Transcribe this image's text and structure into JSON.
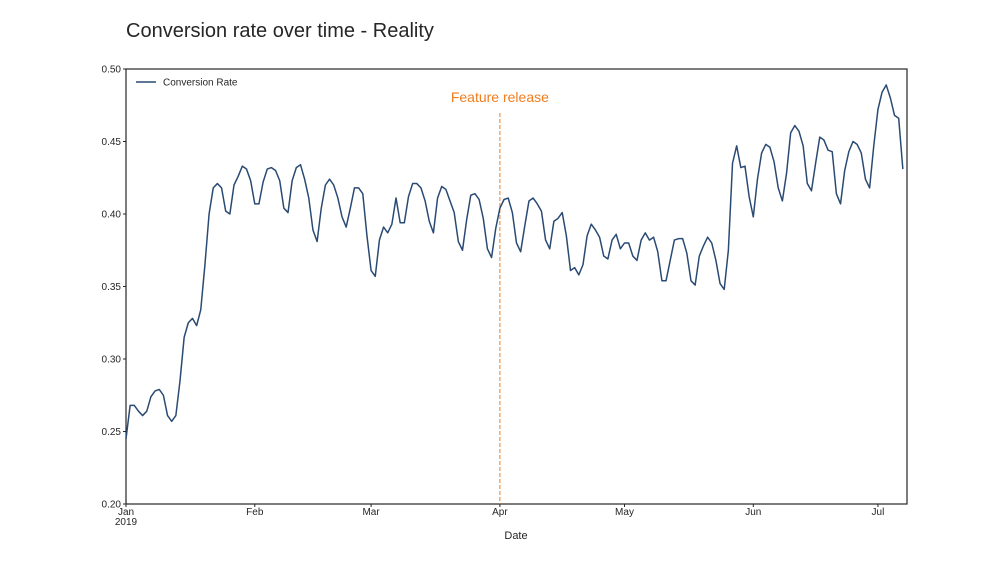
{
  "chart_data": {
    "type": "line",
    "title": "Conversion rate over time - Reality",
    "xlabel": "Date",
    "ylabel": "",
    "xlim": [
      "2019-01-01",
      "2019-07-08"
    ],
    "ylim": [
      0.2,
      0.5
    ],
    "yticks": [
      0.2,
      0.25,
      0.3,
      0.35,
      0.4,
      0.45,
      0.5
    ],
    "ytick_labels": [
      "0.20",
      "0.25",
      "0.30",
      "0.35",
      "0.40",
      "0.45",
      "0.50"
    ],
    "xticks": [
      {
        "date": "2019-01-01",
        "label": "Jan",
        "sublabel": "2019"
      },
      {
        "date": "2019-02-01",
        "label": "Feb",
        "sublabel": ""
      },
      {
        "date": "2019-03-01",
        "label": "Mar",
        "sublabel": ""
      },
      {
        "date": "2019-04-01",
        "label": "Apr",
        "sublabel": ""
      },
      {
        "date": "2019-05-01",
        "label": "May",
        "sublabel": ""
      },
      {
        "date": "2019-06-01",
        "label": "Jun",
        "sublabel": ""
      },
      {
        "date": "2019-07-01",
        "label": "Jul",
        "sublabel": ""
      }
    ],
    "grid": false,
    "legend": {
      "placement": "top-left"
    },
    "series": [
      {
        "name": "Conversion Rate",
        "color": "#2a4a73",
        "points": [
          [
            "2019-01-01",
            0.245
          ],
          [
            "2019-01-02",
            0.268
          ],
          [
            "2019-01-03",
            0.268
          ],
          [
            "2019-01-04",
            0.264
          ],
          [
            "2019-01-05",
            0.261
          ],
          [
            "2019-01-06",
            0.264
          ],
          [
            "2019-01-07",
            0.274
          ],
          [
            "2019-01-08",
            0.278
          ],
          [
            "2019-01-09",
            0.279
          ],
          [
            "2019-01-10",
            0.275
          ],
          [
            "2019-01-11",
            0.261
          ],
          [
            "2019-01-12",
            0.257
          ],
          [
            "2019-01-13",
            0.261
          ],
          [
            "2019-01-14",
            0.285
          ],
          [
            "2019-01-15",
            0.315
          ],
          [
            "2019-01-16",
            0.325
          ],
          [
            "2019-01-17",
            0.328
          ],
          [
            "2019-01-18",
            0.323
          ],
          [
            "2019-01-19",
            0.334
          ],
          [
            "2019-01-20",
            0.365
          ],
          [
            "2019-01-21",
            0.4
          ],
          [
            "2019-01-22",
            0.418
          ],
          [
            "2019-01-23",
            0.421
          ],
          [
            "2019-01-24",
            0.418
          ],
          [
            "2019-01-25",
            0.402
          ],
          [
            "2019-01-26",
            0.4
          ],
          [
            "2019-01-27",
            0.42
          ],
          [
            "2019-01-28",
            0.426
          ],
          [
            "2019-01-29",
            0.433
          ],
          [
            "2019-01-30",
            0.431
          ],
          [
            "2019-01-31",
            0.423
          ],
          [
            "2019-02-01",
            0.407
          ],
          [
            "2019-02-02",
            0.407
          ],
          [
            "2019-02-03",
            0.422
          ],
          [
            "2019-02-04",
            0.431
          ],
          [
            "2019-02-05",
            0.432
          ],
          [
            "2019-02-06",
            0.43
          ],
          [
            "2019-02-07",
            0.423
          ],
          [
            "2019-02-08",
            0.404
          ],
          [
            "2019-02-09",
            0.401
          ],
          [
            "2019-02-10",
            0.423
          ],
          [
            "2019-02-11",
            0.432
          ],
          [
            "2019-02-12",
            0.434
          ],
          [
            "2019-02-13",
            0.424
          ],
          [
            "2019-02-14",
            0.411
          ],
          [
            "2019-02-15",
            0.389
          ],
          [
            "2019-02-16",
            0.381
          ],
          [
            "2019-02-17",
            0.404
          ],
          [
            "2019-02-18",
            0.42
          ],
          [
            "2019-02-19",
            0.424
          ],
          [
            "2019-02-20",
            0.42
          ],
          [
            "2019-02-21",
            0.411
          ],
          [
            "2019-02-22",
            0.398
          ],
          [
            "2019-02-23",
            0.391
          ],
          [
            "2019-02-24",
            0.404
          ],
          [
            "2019-02-25",
            0.418
          ],
          [
            "2019-02-26",
            0.418
          ],
          [
            "2019-02-27",
            0.414
          ],
          [
            "2019-02-28",
            0.385
          ],
          [
            "2019-03-01",
            0.361
          ],
          [
            "2019-03-02",
            0.357
          ],
          [
            "2019-03-03",
            0.382
          ],
          [
            "2019-03-04",
            0.391
          ],
          [
            "2019-03-05",
            0.387
          ],
          [
            "2019-03-06",
            0.393
          ],
          [
            "2019-03-07",
            0.411
          ],
          [
            "2019-03-08",
            0.394
          ],
          [
            "2019-03-09",
            0.394
          ],
          [
            "2019-03-10",
            0.412
          ],
          [
            "2019-03-11",
            0.421
          ],
          [
            "2019-03-12",
            0.421
          ],
          [
            "2019-03-13",
            0.418
          ],
          [
            "2019-03-14",
            0.409
          ],
          [
            "2019-03-15",
            0.395
          ],
          [
            "2019-03-16",
            0.387
          ],
          [
            "2019-03-17",
            0.411
          ],
          [
            "2019-03-18",
            0.419
          ],
          [
            "2019-03-19",
            0.417
          ],
          [
            "2019-03-20",
            0.409
          ],
          [
            "2019-03-21",
            0.401
          ],
          [
            "2019-03-22",
            0.381
          ],
          [
            "2019-03-23",
            0.375
          ],
          [
            "2019-03-24",
            0.396
          ],
          [
            "2019-03-25",
            0.413
          ],
          [
            "2019-03-26",
            0.414
          ],
          [
            "2019-03-27",
            0.41
          ],
          [
            "2019-03-28",
            0.397
          ],
          [
            "2019-03-29",
            0.376
          ],
          [
            "2019-03-30",
            0.37
          ],
          [
            "2019-03-31",
            0.39
          ],
          [
            "2019-04-01",
            0.404
          ],
          [
            "2019-04-02",
            0.41
          ],
          [
            "2019-04-03",
            0.411
          ],
          [
            "2019-04-04",
            0.401
          ],
          [
            "2019-04-05",
            0.38
          ],
          [
            "2019-04-06",
            0.374
          ],
          [
            "2019-04-07",
            0.392
          ],
          [
            "2019-04-08",
            0.409
          ],
          [
            "2019-04-09",
            0.411
          ],
          [
            "2019-04-10",
            0.407
          ],
          [
            "2019-04-11",
            0.402
          ],
          [
            "2019-04-12",
            0.382
          ],
          [
            "2019-04-13",
            0.376
          ],
          [
            "2019-04-14",
            0.395
          ],
          [
            "2019-04-15",
            0.397
          ],
          [
            "2019-04-16",
            0.401
          ],
          [
            "2019-04-17",
            0.385
          ],
          [
            "2019-04-18",
            0.361
          ],
          [
            "2019-04-19",
            0.363
          ],
          [
            "2019-04-20",
            0.358
          ],
          [
            "2019-04-21",
            0.365
          ],
          [
            "2019-04-22",
            0.385
          ],
          [
            "2019-04-23",
            0.393
          ],
          [
            "2019-04-24",
            0.389
          ],
          [
            "2019-04-25",
            0.384
          ],
          [
            "2019-04-26",
            0.371
          ],
          [
            "2019-04-27",
            0.369
          ],
          [
            "2019-04-28",
            0.382
          ],
          [
            "2019-04-29",
            0.386
          ],
          [
            "2019-04-30",
            0.376
          ],
          [
            "2019-05-01",
            0.38
          ],
          [
            "2019-05-02",
            0.38
          ],
          [
            "2019-05-03",
            0.371
          ],
          [
            "2019-05-04",
            0.368
          ],
          [
            "2019-05-05",
            0.382
          ],
          [
            "2019-05-06",
            0.387
          ],
          [
            "2019-05-07",
            0.382
          ],
          [
            "2019-05-08",
            0.384
          ],
          [
            "2019-05-09",
            0.374
          ],
          [
            "2019-05-10",
            0.354
          ],
          [
            "2019-05-11",
            0.354
          ],
          [
            "2019-05-12",
            0.368
          ],
          [
            "2019-05-13",
            0.382
          ],
          [
            "2019-05-14",
            0.383
          ],
          [
            "2019-05-15",
            0.383
          ],
          [
            "2019-05-16",
            0.373
          ],
          [
            "2019-05-17",
            0.354
          ],
          [
            "2019-05-18",
            0.351
          ],
          [
            "2019-05-19",
            0.371
          ],
          [
            "2019-05-20",
            0.378
          ],
          [
            "2019-05-21",
            0.384
          ],
          [
            "2019-05-22",
            0.38
          ],
          [
            "2019-05-23",
            0.368
          ],
          [
            "2019-05-24",
            0.352
          ],
          [
            "2019-05-25",
            0.348
          ],
          [
            "2019-05-26",
            0.375
          ],
          [
            "2019-05-27",
            0.435
          ],
          [
            "2019-05-28",
            0.447
          ],
          [
            "2019-05-29",
            0.432
          ],
          [
            "2019-05-30",
            0.433
          ],
          [
            "2019-05-31",
            0.412
          ],
          [
            "2019-06-01",
            0.398
          ],
          [
            "2019-06-02",
            0.424
          ],
          [
            "2019-06-03",
            0.442
          ],
          [
            "2019-06-04",
            0.448
          ],
          [
            "2019-06-05",
            0.446
          ],
          [
            "2019-06-06",
            0.436
          ],
          [
            "2019-06-07",
            0.418
          ],
          [
            "2019-06-08",
            0.409
          ],
          [
            "2019-06-09",
            0.428
          ],
          [
            "2019-06-10",
            0.456
          ],
          [
            "2019-06-11",
            0.461
          ],
          [
            "2019-06-12",
            0.457
          ],
          [
            "2019-06-13",
            0.447
          ],
          [
            "2019-06-14",
            0.421
          ],
          [
            "2019-06-15",
            0.416
          ],
          [
            "2019-06-16",
            0.435
          ],
          [
            "2019-06-17",
            0.453
          ],
          [
            "2019-06-18",
            0.451
          ],
          [
            "2019-06-19",
            0.444
          ],
          [
            "2019-06-20",
            0.443
          ],
          [
            "2019-06-21",
            0.414
          ],
          [
            "2019-06-22",
            0.407
          ],
          [
            "2019-06-23",
            0.43
          ],
          [
            "2019-06-24",
            0.443
          ],
          [
            "2019-06-25",
            0.45
          ],
          [
            "2019-06-26",
            0.448
          ],
          [
            "2019-06-27",
            0.442
          ],
          [
            "2019-06-28",
            0.424
          ],
          [
            "2019-06-29",
            0.418
          ],
          [
            "2019-06-30",
            0.447
          ],
          [
            "2019-07-01",
            0.472
          ],
          [
            "2019-07-02",
            0.484
          ],
          [
            "2019-07-03",
            0.489
          ],
          [
            "2019-07-04",
            0.48
          ],
          [
            "2019-07-05",
            0.468
          ],
          [
            "2019-07-06",
            0.466
          ],
          [
            "2019-07-07",
            0.431
          ]
        ]
      }
    ],
    "annotations": [
      {
        "type": "vline",
        "date": "2019-04-01",
        "label": "Feature release",
        "color": "#f07d1e"
      }
    ]
  }
}
